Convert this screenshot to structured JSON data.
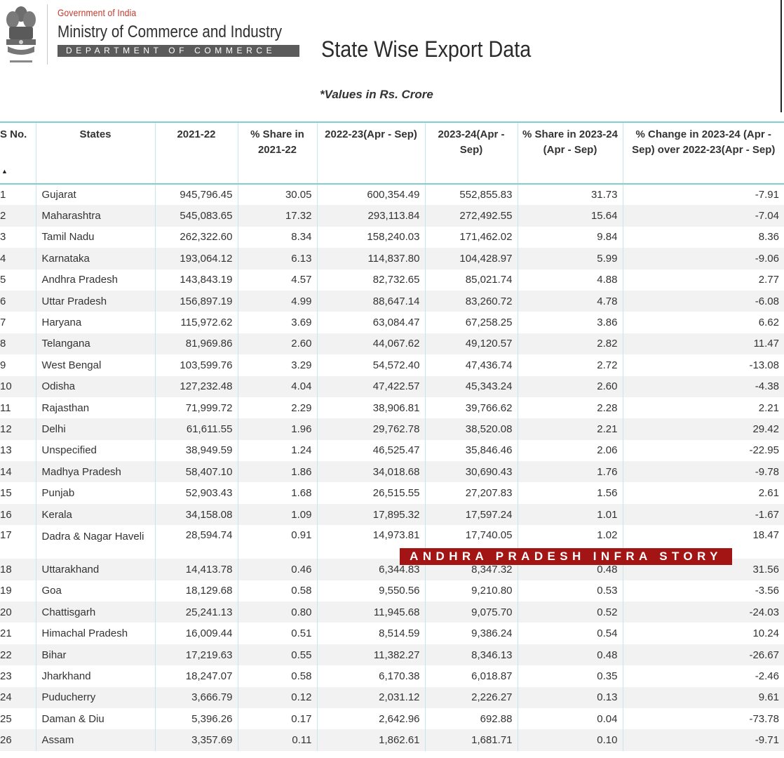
{
  "header": {
    "gov_line": "Government of India",
    "ministry": "Ministry of Commerce and Industry",
    "department": "DEPARTMENT OF COMMERCE",
    "page_title": "State Wise Export Data",
    "values_note": "*Values in Rs. Crore"
  },
  "table": {
    "columns": [
      "S No.",
      "States",
      "2021-22",
      "% Share in 2021-22",
      "2022-23(Apr - Sep)",
      "2023-24(Apr -Sep)",
      "% Share in 2023-24 (Apr - Sep)",
      "% Change in 2023-24 (Apr -Sep) over 2022-23(Apr - Sep)"
    ],
    "sort_indicator": "▲",
    "rows": [
      [
        "1",
        "Gujarat",
        "945,796.45",
        "30.05",
        "600,354.49",
        "552,855.83",
        "31.73",
        "-7.91"
      ],
      [
        "2",
        "Maharashtra",
        "545,083.65",
        "17.32",
        "293,113.84",
        "272,492.55",
        "15.64",
        "-7.04"
      ],
      [
        "3",
        "Tamil Nadu",
        "262,322.60",
        "8.34",
        "158,240.03",
        "171,462.02",
        "9.84",
        "8.36"
      ],
      [
        "4",
        "Karnataka",
        "193,064.12",
        "6.13",
        "114,837.80",
        "104,428.97",
        "5.99",
        "-9.06"
      ],
      [
        "5",
        "Andhra Pradesh",
        "143,843.19",
        "4.57",
        "82,732.65",
        "85,021.74",
        "4.88",
        "2.77"
      ],
      [
        "6",
        "Uttar Pradesh",
        "156,897.19",
        "4.99",
        "88,647.14",
        "83,260.72",
        "4.78",
        "-6.08"
      ],
      [
        "7",
        "Haryana",
        "115,972.62",
        "3.69",
        "63,084.47",
        "67,258.25",
        "3.86",
        "6.62"
      ],
      [
        "8",
        "Telangana",
        "81,969.86",
        "2.60",
        "44,067.62",
        "49,120.57",
        "2.82",
        "11.47"
      ],
      [
        "9",
        "West Bengal",
        "103,599.76",
        "3.29",
        "54,572.40",
        "47,436.74",
        "2.72",
        "-13.08"
      ],
      [
        "10",
        "Odisha",
        "127,232.48",
        "4.04",
        "47,422.57",
        "45,343.24",
        "2.60",
        "-4.38"
      ],
      [
        "11",
        "Rajasthan",
        "71,999.72",
        "2.29",
        "38,906.81",
        "39,766.62",
        "2.28",
        "2.21"
      ],
      [
        "12",
        "Delhi",
        "61,611.55",
        "1.96",
        "29,762.78",
        "38,520.08",
        "2.21",
        "29.42"
      ],
      [
        "13",
        "Unspecified",
        "38,949.59",
        "1.24",
        "46,525.47",
        "35,846.46",
        "2.06",
        "-22.95"
      ],
      [
        "14",
        "Madhya Pradesh",
        "58,407.10",
        "1.86",
        "34,018.68",
        "30,690.43",
        "1.76",
        "-9.78"
      ],
      [
        "15",
        "Punjab",
        "52,903.43",
        "1.68",
        "26,515.55",
        "27,207.83",
        "1.56",
        "2.61"
      ],
      [
        "16",
        "Kerala",
        "34,158.08",
        "1.09",
        "17,895.32",
        "17,597.24",
        "1.01",
        "-1.67"
      ],
      [
        "17",
        "Dadra & Nagar Haveli",
        "28,594.74",
        "0.91",
        "14,973.81",
        "17,740.05",
        "1.02",
        "18.47"
      ],
      [
        "18",
        "Uttarakhand",
        "14,413.78",
        "0.46",
        "6,344.83",
        "8,347.32",
        "0.48",
        "31.56"
      ],
      [
        "19",
        "Goa",
        "18,129.68",
        "0.58",
        "9,550.56",
        "9,210.80",
        "0.53",
        "-3.56"
      ],
      [
        "20",
        "Chattisgarh",
        "25,241.13",
        "0.80",
        "11,945.68",
        "9,075.70",
        "0.52",
        "-24.03"
      ],
      [
        "21",
        "Himachal Pradesh",
        "16,009.44",
        "0.51",
        "8,514.59",
        "9,386.24",
        "0.54",
        "10.24"
      ],
      [
        "22",
        "Bihar",
        "17,219.63",
        "0.55",
        "11,382.27",
        "8,346.13",
        "0.48",
        "-26.67"
      ],
      [
        "23",
        "Jharkhand",
        "18,247.07",
        "0.58",
        "6,170.38",
        "6,018.87",
        "0.35",
        "-2.46"
      ],
      [
        "24",
        "Puducherry",
        "3,666.79",
        "0.12",
        "2,031.12",
        "2,226.27",
        "0.13",
        "9.61"
      ],
      [
        "25",
        "Daman & Diu",
        "5,396.26",
        "0.17",
        "2,642.96",
        "692.88",
        "0.04",
        "-73.78"
      ],
      [
        "26",
        "Assam",
        "3,357.69",
        "0.11",
        "1,862.61",
        "1,681.71",
        "0.10",
        "-9.71"
      ]
    ]
  },
  "watermark": "ANDHRA PRADESH INFRA STORY"
}
